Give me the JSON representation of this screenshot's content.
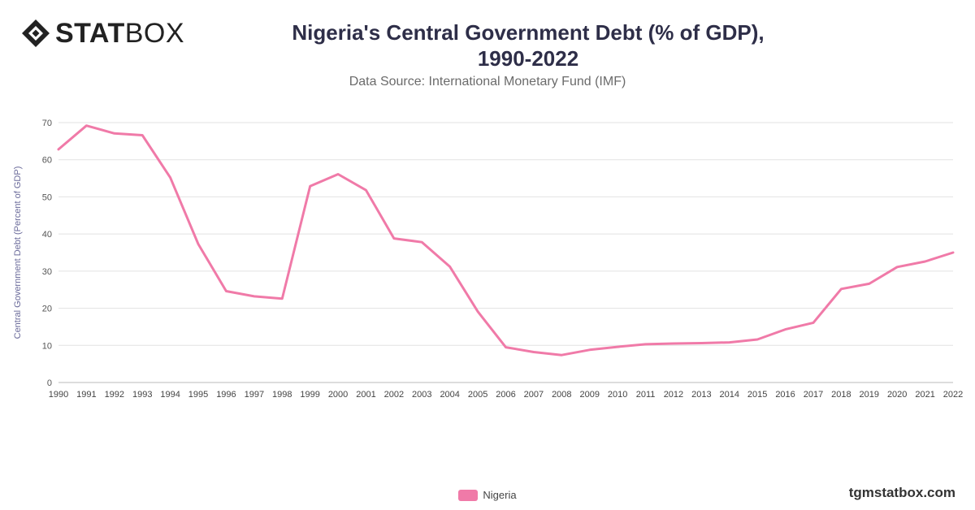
{
  "logo": {
    "text_bold": "STAT",
    "text_light": "BOX"
  },
  "title_line1": "Nigeria's Central Government Debt (% of GDP),",
  "title_line2": "1990-2022",
  "subtitle": "Data Source: International Monetary Fund (IMF)",
  "watermark": "tgmstatbox.com",
  "colors": {
    "series": "#f07aa8",
    "grid": "#e2e2e2",
    "title": "#2e2e48",
    "axis_label": "#6a6a9a"
  },
  "chart_data": {
    "type": "line",
    "x": [
      "1990",
      "1991",
      "1992",
      "1993",
      "1994",
      "1995",
      "1996",
      "1997",
      "1998",
      "1999",
      "2000",
      "2001",
      "2002",
      "2003",
      "2004",
      "2005",
      "2006",
      "2007",
      "2008",
      "2009",
      "2010",
      "2011",
      "2012",
      "2013",
      "2014",
      "2015",
      "2016",
      "2017",
      "2018",
      "2019",
      "2020",
      "2021",
      "2022"
    ],
    "series": [
      {
        "name": "Nigeria",
        "values": [
          62.8,
          69.2,
          67.1,
          66.6,
          55.2,
          37.3,
          24.6,
          23.2,
          22.6,
          52.9,
          56.1,
          51.8,
          38.8,
          37.8,
          31.2,
          19.1,
          9.5,
          8.2,
          7.4,
          8.8,
          9.6,
          10.3,
          10.5,
          10.6,
          10.8,
          11.6,
          14.3,
          16.1,
          25.2,
          26.6,
          31.1,
          32.6,
          35.0
        ]
      }
    ],
    "ylabel": "Central Government Debt (Percent of GDP)",
    "xlabel": "",
    "ylim": [
      0,
      70
    ],
    "yticks": [
      0,
      10,
      20,
      30,
      40,
      50,
      60,
      70
    ],
    "grid": true,
    "legend_position": "bottom-center"
  }
}
